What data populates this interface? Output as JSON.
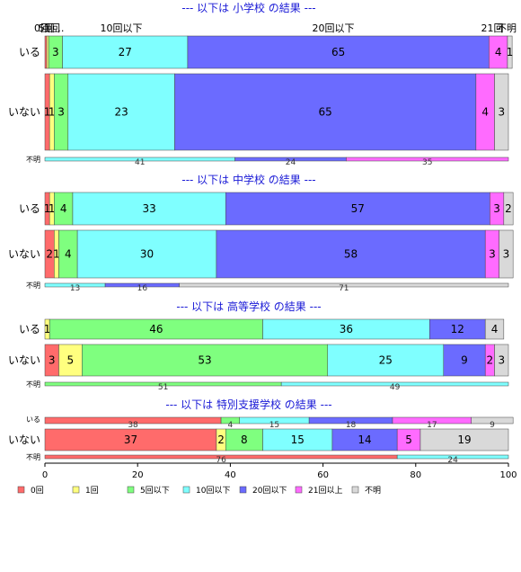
{
  "chart_data": {
    "type": "bar",
    "orientation": "horizontal-stacked-100",
    "categories": [
      "0回",
      "1回",
      "5回以下",
      "10回以下",
      "20回以下",
      "21回以上",
      "不明"
    ],
    "colors": [
      "#ff6b6b",
      "#ffff7f",
      "#7fff7f",
      "#7fffff",
      "#6b6bff",
      "#ff6bff",
      "#d9d9d9"
    ],
    "xlim": [
      0,
      100
    ],
    "xticks": [
      0,
      20,
      40,
      60,
      80,
      100
    ],
    "legend_position": "bottom",
    "top_labels": [
      "0回",
      "1回",
      "5回…",
      "10回以下",
      "20回以下",
      "21回",
      "不明"
    ],
    "panels": [
      {
        "title": "--- 以下は 小学校 の結果 ---",
        "rows": [
          {
            "label": "いる",
            "values": [
              0.4,
              0.4,
              3,
              27,
              65,
              4,
              1
            ]
          },
          {
            "label": "いない",
            "values": [
              1,
              1,
              3,
              23,
              65,
              4,
              3
            ]
          },
          {
            "label": "不明",
            "values": [
              0,
              0,
              0,
              41,
              24,
              35,
              0
            ]
          }
        ]
      },
      {
        "title": "--- 以下は 中学校 の結果 ---",
        "rows": [
          {
            "label": "いる",
            "values": [
              1,
              1,
              4,
              33,
              57,
              3,
              2
            ]
          },
          {
            "label": "いない",
            "values": [
              2,
              1,
              4,
              30,
              58,
              3,
              3
            ]
          },
          {
            "label": "不明",
            "values": [
              0,
              0,
              0,
              13,
              16,
              0,
              71
            ]
          }
        ]
      },
      {
        "title": "--- 以下は 高等学校 の結果 ---",
        "rows": [
          {
            "label": "いる",
            "values": [
              0,
              1,
              46,
              36,
              12,
              0,
              4
            ]
          },
          {
            "label": "いない",
            "values": [
              3,
              5,
              53,
              25,
              9,
              2,
              3
            ]
          },
          {
            "label": "不明",
            "values": [
              0,
              0,
              51,
              49,
              0,
              0,
              0
            ]
          }
        ]
      },
      {
        "title": "--- 以下は 特別支援学校 の結果 ---",
        "rows": [
          {
            "label": "いる",
            "values": [
              38,
              0,
              4,
              15,
              18,
              17,
              9
            ]
          },
          {
            "label": "いない",
            "values": [
              37,
              2,
              8,
              15,
              14,
              5,
              19
            ]
          },
          {
            "label": "不明",
            "values": [
              76,
              0,
              0,
              24,
              0,
              0,
              0
            ]
          }
        ]
      }
    ]
  }
}
